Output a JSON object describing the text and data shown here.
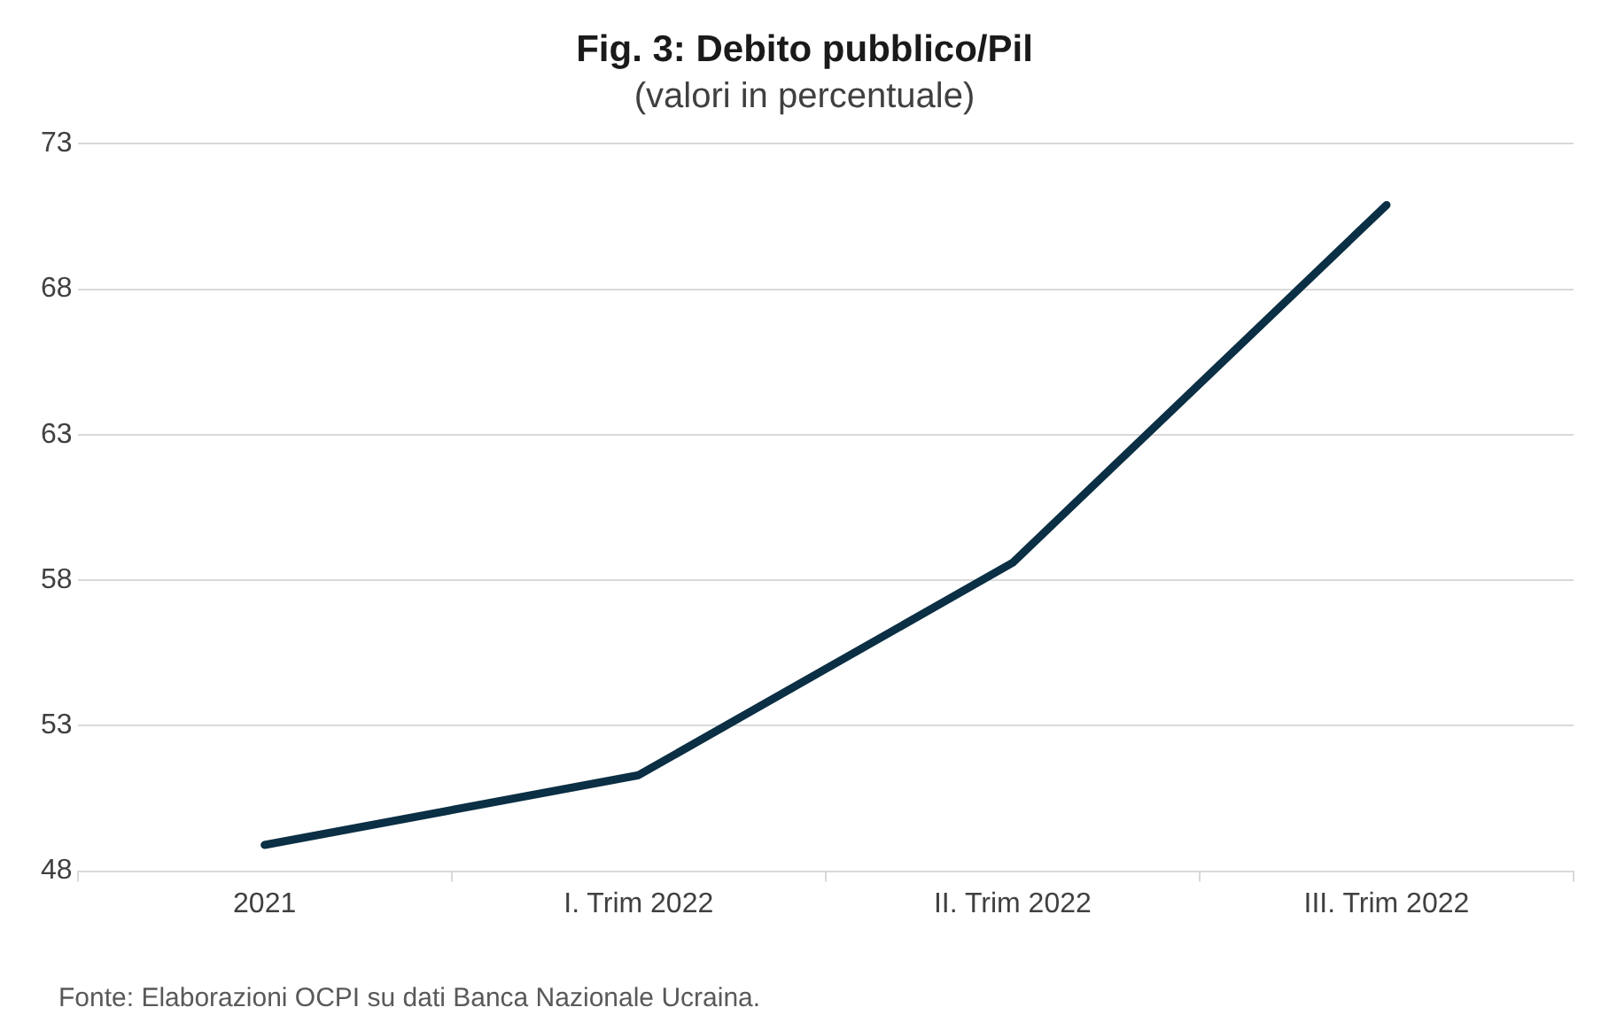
{
  "chart_data": {
    "type": "line",
    "title": "Fig. 3: Debito pubblico/Pil",
    "subtitle": "(valori in percentuale)",
    "categories": [
      "2021",
      "I. Trim 2022",
      "II. Trim 2022",
      "III. Trim 2022"
    ],
    "series": [
      {
        "color": "#0b2f44",
        "values": [
          48.9,
          51.3,
          58.6,
          70.9
        ]
      }
    ],
    "ylim": [
      48,
      73
    ],
    "yticks": [
      48,
      53,
      58,
      63,
      68,
      73
    ],
    "grid": "y",
    "legend": false,
    "marker": "none",
    "line_style": "solid",
    "annotations": [
      "Fonte: Elaborazioni OCPI su dati Banca Nazionale Ucraina."
    ]
  }
}
